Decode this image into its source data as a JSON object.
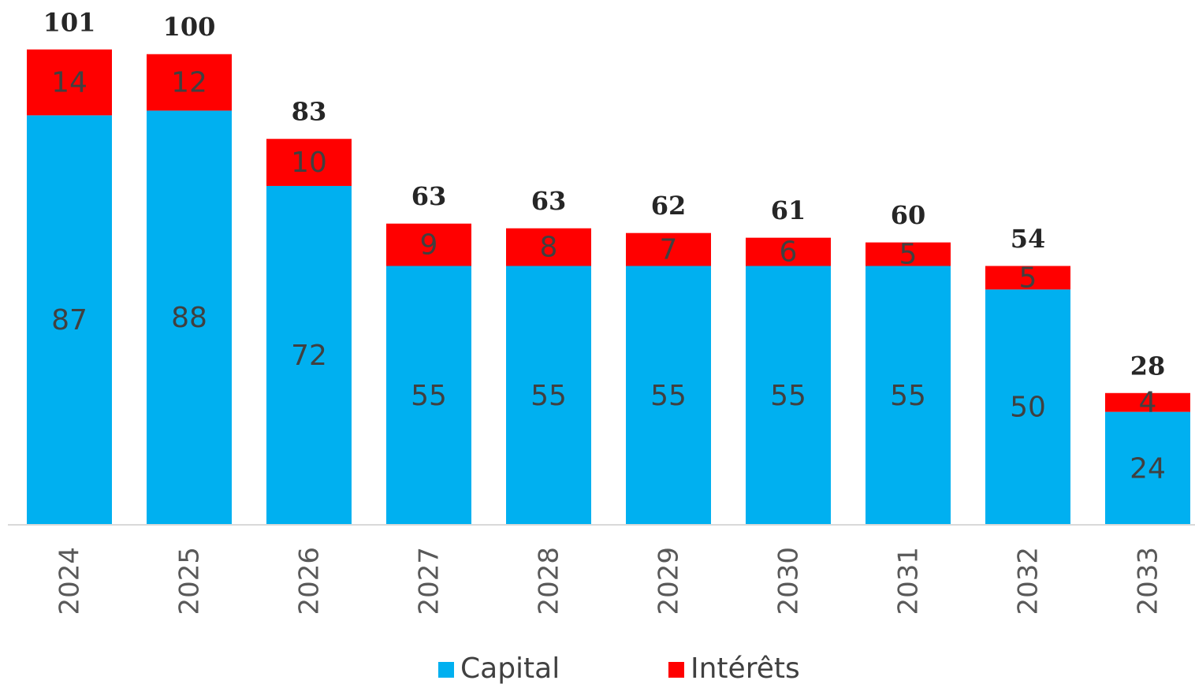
{
  "chart_data": {
    "type": "bar",
    "stacked": true,
    "categories": [
      "2024",
      "2025",
      "2026",
      "2027",
      "2028",
      "2029",
      "2030",
      "2031",
      "2032",
      "2033"
    ],
    "series": [
      {
        "name": "Capital",
        "color": "#00b0f0",
        "values": [
          87,
          88,
          72,
          55,
          55,
          55,
          55,
          55,
          50,
          24
        ]
      },
      {
        "name": "Intérêts",
        "color": "#ff0000",
        "values": [
          14,
          12,
          10,
          9,
          8,
          7,
          6,
          5,
          5,
          4
        ]
      }
    ],
    "totals": [
      101,
      100,
      83,
      63,
      63,
      62,
      61,
      60,
      54,
      28
    ],
    "ylim": [
      0,
      110
    ]
  }
}
